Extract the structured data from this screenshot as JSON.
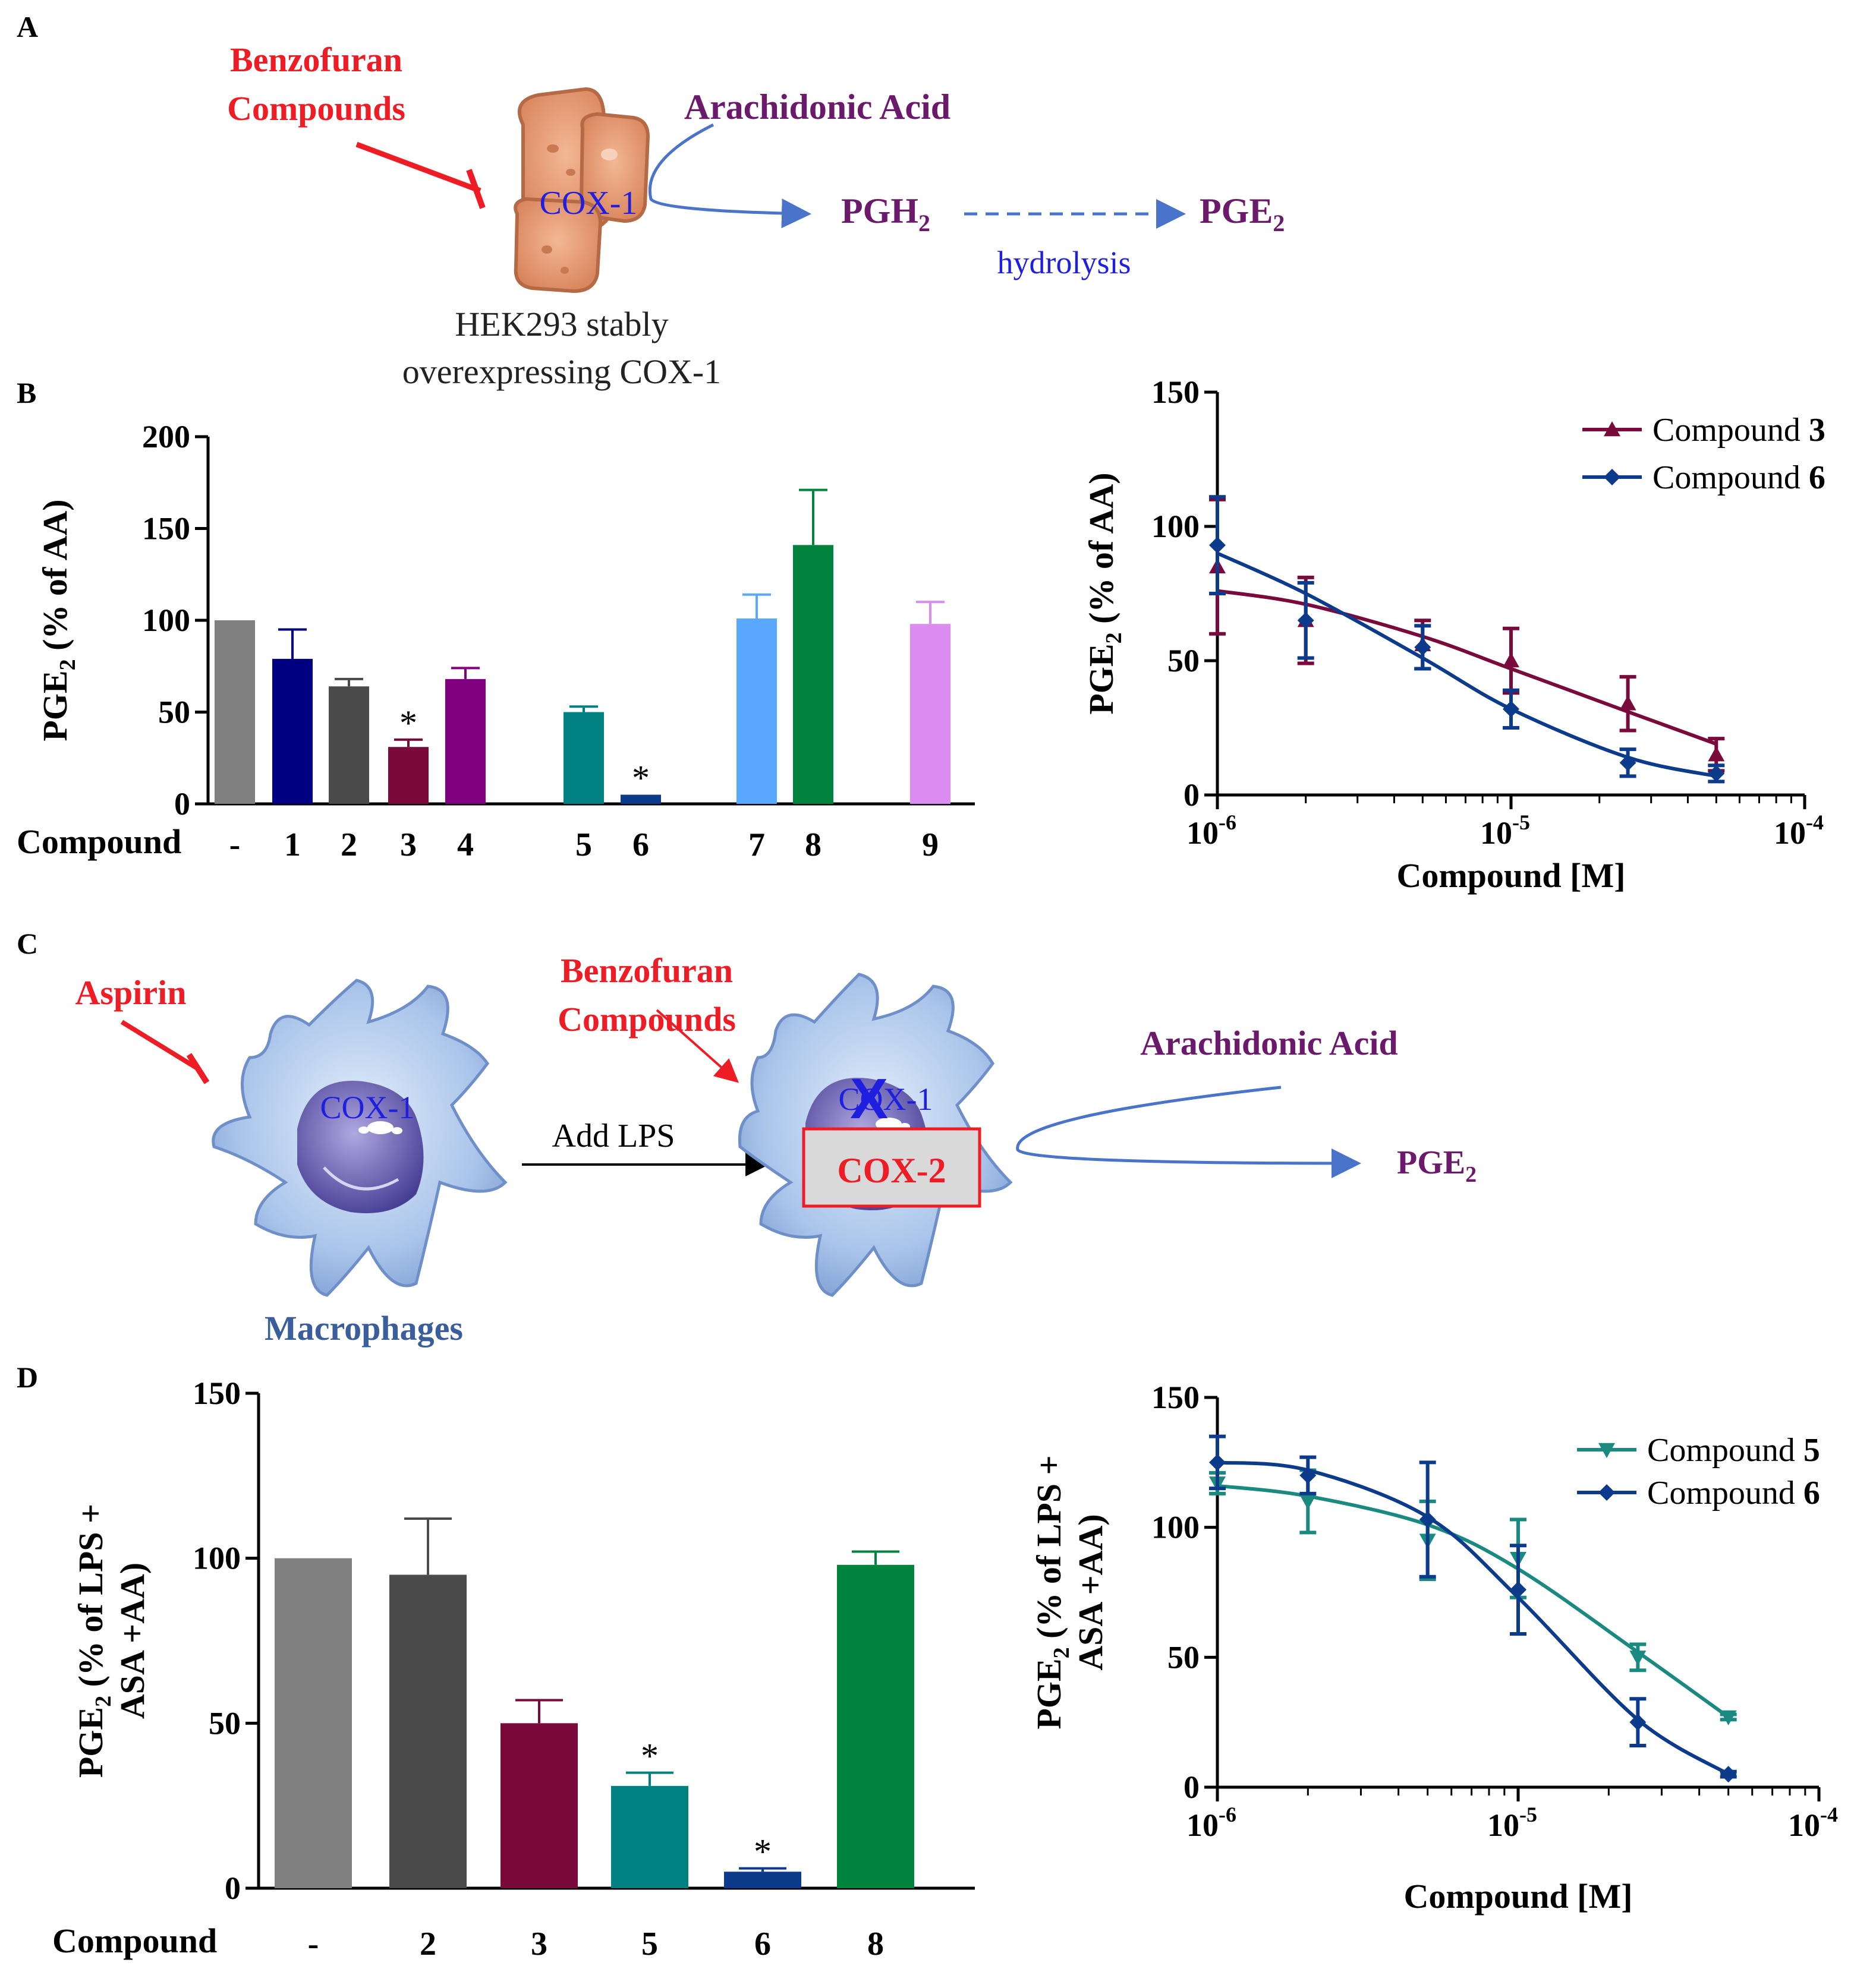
{
  "colors": {
    "red": "#ee1c24",
    "purple": "#6b1a6b",
    "blue": "#1f1fe0",
    "arrow": "#4a74c9",
    "macro_text": "#3a5d9c"
  },
  "panels": {
    "A": {
      "letter": "A",
      "inhibitor_line1": "Benzofuran",
      "inhibitor_line2": "Compounds",
      "enzyme": "COX-1",
      "substrate": "Arachidonic Acid",
      "product1": "PGH",
      "product1_sub": "2",
      "product2": "PGE",
      "product2_sub": "2",
      "process": "hydrolysis",
      "cell_line1": "HEK293 stably",
      "cell_line2": "overexpressing COX-1"
    },
    "B": {
      "letter": "B"
    },
    "C": {
      "letter": "C",
      "inhibitor1": "Aspirin",
      "inhibitor2_line1": "Benzofuran",
      "inhibitor2_line2": "Compounds",
      "enzyme1": "COX-1",
      "enzyme1_blocked": "COX-1",
      "x_mark": "X",
      "enzyme2": "COX-2",
      "stimulus": "Add LPS",
      "substrate": "Arachidonic Acid",
      "product": "PGE",
      "product_sub": "2",
      "cell": "Macrophages"
    },
    "D": {
      "letter": "D"
    }
  },
  "chart_data": [
    {
      "id": "B-bar",
      "type": "bar",
      "ylabel_main": "PGE",
      "ylabel_sub": "2",
      "ylabel_rest": " (% of AA)",
      "xlabel": "Compound",
      "ylim": [
        0,
        200
      ],
      "yticks": [
        "0",
        "50",
        "100",
        "150",
        "200"
      ],
      "categories": [
        "-",
        "1",
        "2",
        "3",
        "4",
        "5",
        "6",
        "7",
        "8",
        "9"
      ],
      "values": [
        100,
        79,
        64,
        31,
        68,
        50,
        5,
        101,
        141,
        98
      ],
      "errors": [
        0,
        16,
        4,
        4,
        6,
        3,
        0,
        13,
        30,
        12
      ],
      "significant": [
        "",
        "",
        "",
        "*",
        "",
        "",
        "*",
        "",
        "",
        ""
      ],
      "colors": [
        "#808080",
        "#000080",
        "#4a4a4a",
        "#7b0a3c",
        "#800080",
        "#008080",
        "#0d3b8c",
        "#5aa7ff",
        "#00843d",
        "#dc8cf0"
      ]
    },
    {
      "id": "B-line",
      "type": "line",
      "ylabel_main": "PGE",
      "ylabel_sub": "2",
      "ylabel_rest": " (% of AA)",
      "xlabel": "Compound [M]",
      "xscale": "log",
      "xlim": [
        1e-06,
        0.0001
      ],
      "ylim": [
        0,
        150
      ],
      "yticks": [
        "0",
        "50",
        "100",
        "150"
      ],
      "xticks": [
        {
          "base": "10",
          "exp": "-6"
        },
        {
          "base": "10",
          "exp": "-5"
        },
        {
          "base": "10",
          "exp": "-4"
        }
      ],
      "legend": "top-right",
      "series": [
        {
          "name": "Compound ",
          "bold": "3",
          "marker": "triangle",
          "color": "#7b0a3c",
          "x": [
            1e-06,
            2e-06,
            5e-06,
            1e-05,
            2.5e-05,
            5e-05
          ],
          "y": [
            85,
            65,
            56,
            50,
            34,
            15
          ],
          "err": [
            25,
            16,
            9,
            12,
            10,
            6
          ],
          "fit": [
            76,
            71,
            59,
            47,
            31,
            19
          ]
        },
        {
          "name": "Compound ",
          "bold": "6",
          "marker": "diamond",
          "color": "#0d3b8c",
          "x": [
            1e-06,
            2e-06,
            5e-06,
            1e-05,
            2.5e-05,
            5e-05
          ],
          "y": [
            93,
            65,
            55,
            32,
            12,
            8
          ],
          "err": [
            18,
            14,
            8,
            7,
            5,
            3
          ],
          "fit": [
            90,
            75,
            51,
            32,
            14,
            7
          ]
        }
      ]
    },
    {
      "id": "D-bar",
      "type": "bar",
      "ylabel_main": "PGE",
      "ylabel_sub": "2",
      "ylabel_rest": " (% of LPS +",
      "ylabel_line2": "ASA +AA)",
      "xlabel": "Compound",
      "ylim": [
        0,
        150
      ],
      "yticks": [
        "0",
        "50",
        "100",
        "150"
      ],
      "categories": [
        "-",
        "2",
        "3",
        "5",
        "6",
        "8"
      ],
      "values": [
        100,
        95,
        50,
        31,
        5,
        98
      ],
      "errors": [
        0,
        17,
        7,
        4,
        1,
        4
      ],
      "significant": [
        "",
        "",
        "",
        "*",
        "*",
        ""
      ],
      "colors": [
        "#808080",
        "#4a4a4a",
        "#7b0a3c",
        "#008080",
        "#0d3b8c",
        "#00843d"
      ]
    },
    {
      "id": "D-line",
      "type": "line",
      "ylabel_main": "PGE",
      "ylabel_sub": "2",
      "ylabel_rest": " (% of LPS +",
      "ylabel_line2": "ASA +AA)",
      "xlabel": "Compound [M]",
      "xscale": "log",
      "xlim": [
        1e-06,
        0.0001
      ],
      "ylim": [
        0,
        150
      ],
      "yticks": [
        "0",
        "50",
        "100",
        "150"
      ],
      "xticks": [
        {
          "base": "10",
          "exp": "-6"
        },
        {
          "base": "10",
          "exp": "-5"
        },
        {
          "base": "10",
          "exp": "-4"
        }
      ],
      "legend": "top-right",
      "series": [
        {
          "name": "Compound ",
          "bold": "5",
          "marker": "triangle-down",
          "color": "#1a8a80",
          "x": [
            1e-06,
            2e-06,
            5e-06,
            1e-05,
            2.5e-05,
            5e-05
          ],
          "y": [
            117,
            110,
            95,
            88,
            50,
            27
          ],
          "err": [
            4,
            12,
            15,
            15,
            5,
            1
          ],
          "fit": [
            116,
            112,
            101,
            84,
            52,
            27
          ]
        },
        {
          "name": "Compound ",
          "bold": "6",
          "marker": "diamond",
          "color": "#0d3b8c",
          "x": [
            1e-06,
            2e-06,
            5e-06,
            1e-05,
            2.5e-05,
            5e-05
          ],
          "y": [
            125,
            120,
            103,
            76,
            25,
            5
          ],
          "err": [
            10,
            7,
            22,
            17,
            9,
            1
          ],
          "fit": [
            125,
            122,
            104,
            73,
            26,
            5
          ]
        }
      ]
    }
  ]
}
